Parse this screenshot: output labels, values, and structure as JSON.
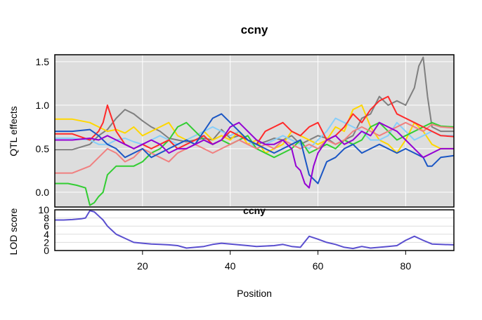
{
  "chart_data": [
    {
      "panel": "effects",
      "type": "line",
      "title": "ccny",
      "xlabel": "Position",
      "ylabel": "QTL effects",
      "xlim": [
        0,
        91
      ],
      "ylim": [
        -0.17,
        1.58
      ],
      "x_ticks": [
        20,
        40,
        60,
        80
      ],
      "y_ticks": [
        0.0,
        0.5,
        1.0,
        1.5
      ],
      "y_tick_labels": [
        "0.0",
        "0.5",
        "1.0",
        "1.5"
      ],
      "background": "#dddddd",
      "grid": true,
      "legend": "none",
      "series": [
        {
          "color": "#7f7f7f",
          "x": [
            0,
            4,
            8,
            10,
            12,
            14,
            16,
            18,
            20,
            22,
            24,
            26,
            28,
            30,
            32,
            34,
            36,
            38,
            40,
            42,
            44,
            46,
            48,
            50,
            52,
            54,
            56,
            58,
            60,
            62,
            64,
            66,
            68,
            70,
            72,
            74,
            76,
            78,
            80,
            82,
            83,
            84,
            85,
            86,
            88,
            91
          ],
          "y": [
            0.49,
            0.49,
            0.55,
            0.65,
            0.72,
            0.85,
            0.95,
            0.9,
            0.82,
            0.75,
            0.7,
            0.62,
            0.6,
            0.58,
            0.6,
            0.62,
            0.6,
            0.72,
            0.62,
            0.65,
            0.6,
            0.55,
            0.58,
            0.62,
            0.6,
            0.65,
            0.55,
            0.6,
            0.65,
            0.62,
            0.55,
            0.6,
            0.65,
            0.85,
            0.9,
            1.1,
            1.0,
            1.05,
            1.0,
            1.2,
            1.45,
            1.55,
            1.1,
            0.75,
            0.7,
            0.7
          ]
        },
        {
          "color": "#ffd700",
          "x": [
            0,
            4,
            8,
            10,
            12,
            14,
            16,
            18,
            20,
            22,
            24,
            26,
            28,
            30,
            32,
            34,
            36,
            38,
            40,
            42,
            44,
            46,
            48,
            50,
            52,
            54,
            56,
            58,
            60,
            62,
            64,
            66,
            68,
            70,
            72,
            74,
            76,
            78,
            80,
            82,
            84,
            86,
            88,
            91
          ],
          "y": [
            0.84,
            0.84,
            0.8,
            0.75,
            0.7,
            0.72,
            0.68,
            0.75,
            0.65,
            0.7,
            0.75,
            0.8,
            0.65,
            0.6,
            0.65,
            0.7,
            0.6,
            0.65,
            0.6,
            0.7,
            0.55,
            0.6,
            0.45,
            0.5,
            0.55,
            0.7,
            0.65,
            0.6,
            0.55,
            0.6,
            0.75,
            0.7,
            0.95,
            1.0,
            0.75,
            0.6,
            0.55,
            0.45,
            0.6,
            0.8,
            0.7,
            0.55,
            0.5,
            0.5
          ]
        },
        {
          "color": "#87cefa",
          "x": [
            0,
            4,
            8,
            10,
            12,
            14,
            16,
            18,
            20,
            22,
            24,
            26,
            28,
            30,
            32,
            34,
            36,
            38,
            40,
            42,
            44,
            46,
            48,
            50,
            52,
            54,
            56,
            58,
            60,
            62,
            64,
            66,
            68,
            70,
            72,
            74,
            76,
            78,
            80,
            82,
            84,
            86,
            88,
            91
          ],
          "y": [
            0.62,
            0.62,
            0.6,
            0.55,
            0.55,
            0.6,
            0.62,
            0.58,
            0.55,
            0.6,
            0.65,
            0.6,
            0.55,
            0.6,
            0.65,
            0.7,
            0.75,
            0.7,
            0.65,
            0.7,
            0.6,
            0.5,
            0.55,
            0.6,
            0.65,
            0.6,
            0.55,
            0.5,
            0.6,
            0.7,
            0.85,
            0.8,
            0.75,
            0.7,
            0.6,
            0.6,
            0.65,
            0.8,
            0.7,
            0.6,
            0.65,
            0.7,
            0.65,
            0.65
          ]
        },
        {
          "color": "#32cd32",
          "x": [
            0,
            3,
            5,
            7,
            8,
            9,
            10,
            11,
            12,
            13,
            14,
            16,
            18,
            20,
            22,
            24,
            26,
            28,
            30,
            32,
            34,
            36,
            38,
            40,
            42,
            44,
            46,
            48,
            50,
            52,
            54,
            56,
            58,
            60,
            62,
            64,
            66,
            68,
            70,
            72,
            74,
            76,
            78,
            80,
            82,
            84,
            86,
            88,
            91
          ],
          "y": [
            0.1,
            0.1,
            0.08,
            0.05,
            -0.15,
            -0.12,
            -0.05,
            0.0,
            0.2,
            0.25,
            0.3,
            0.3,
            0.3,
            0.35,
            0.45,
            0.5,
            0.6,
            0.75,
            0.8,
            0.7,
            0.6,
            0.55,
            0.6,
            0.55,
            0.6,
            0.65,
            0.5,
            0.45,
            0.4,
            0.45,
            0.5,
            0.6,
            0.45,
            0.5,
            0.55,
            0.5,
            0.6,
            0.55,
            0.6,
            0.75,
            0.8,
            0.7,
            0.6,
            0.65,
            0.7,
            0.75,
            0.8,
            0.76,
            0.75
          ]
        },
        {
          "color": "#f08080",
          "x": [
            0,
            4,
            8,
            10,
            12,
            14,
            16,
            18,
            20,
            22,
            24,
            26,
            28,
            30,
            32,
            34,
            36,
            38,
            40,
            42,
            44,
            46,
            48,
            50,
            52,
            54,
            56,
            58,
            60,
            62,
            64,
            66,
            68,
            70,
            72,
            74,
            76,
            78,
            80,
            82,
            84,
            86,
            88,
            91
          ],
          "y": [
            0.22,
            0.22,
            0.3,
            0.4,
            0.5,
            0.45,
            0.35,
            0.4,
            0.5,
            0.45,
            0.4,
            0.35,
            0.45,
            0.5,
            0.55,
            0.5,
            0.45,
            0.5,
            0.55,
            0.6,
            0.55,
            0.5,
            0.55,
            0.5,
            0.6,
            0.55,
            0.5,
            0.55,
            0.5,
            0.6,
            0.55,
            0.6,
            0.7,
            0.75,
            0.7,
            0.65,
            0.7,
            0.75,
            0.8,
            0.75,
            0.7,
            0.78,
            0.75,
            0.74
          ]
        },
        {
          "color": "#ff2a2a",
          "x": [
            0,
            4,
            8,
            10,
            11,
            12,
            13,
            14,
            16,
            18,
            20,
            22,
            24,
            26,
            28,
            30,
            32,
            34,
            36,
            38,
            40,
            42,
            44,
            46,
            48,
            50,
            52,
            54,
            56,
            58,
            60,
            62,
            64,
            66,
            68,
            70,
            72,
            74,
            76,
            78,
            80,
            82,
            84,
            86,
            88,
            91
          ],
          "y": [
            0.67,
            0.67,
            0.6,
            0.7,
            0.8,
            1.0,
            0.85,
            0.7,
            0.55,
            0.5,
            0.55,
            0.5,
            0.55,
            0.6,
            0.5,
            0.55,
            0.6,
            0.65,
            0.55,
            0.6,
            0.7,
            0.65,
            0.6,
            0.55,
            0.7,
            0.75,
            0.8,
            0.7,
            0.65,
            0.75,
            0.8,
            0.6,
            0.65,
            0.75,
            0.9,
            0.8,
            0.95,
            1.05,
            1.1,
            0.9,
            0.85,
            0.8,
            0.75,
            0.7,
            0.65,
            0.64
          ]
        },
        {
          "color": "#1a56c4",
          "x": [
            0,
            4,
            8,
            10,
            12,
            14,
            16,
            18,
            20,
            22,
            24,
            26,
            28,
            30,
            32,
            34,
            36,
            38,
            40,
            42,
            44,
            46,
            48,
            50,
            52,
            54,
            56,
            58,
            60,
            62,
            64,
            66,
            68,
            70,
            72,
            74,
            76,
            78,
            80,
            82,
            84,
            85,
            86,
            88,
            91
          ],
          "y": [
            0.7,
            0.7,
            0.72,
            0.65,
            0.55,
            0.5,
            0.4,
            0.45,
            0.5,
            0.4,
            0.45,
            0.5,
            0.55,
            0.6,
            0.55,
            0.7,
            0.85,
            0.9,
            0.8,
            0.7,
            0.6,
            0.55,
            0.5,
            0.45,
            0.5,
            0.55,
            0.6,
            0.2,
            0.1,
            0.35,
            0.4,
            0.5,
            0.55,
            0.45,
            0.5,
            0.55,
            0.5,
            0.45,
            0.5,
            0.45,
            0.4,
            0.3,
            0.3,
            0.4,
            0.42
          ]
        },
        {
          "color": "#9400d3",
          "x": [
            0,
            4,
            8,
            10,
            12,
            14,
            16,
            18,
            20,
            22,
            24,
            26,
            28,
            30,
            32,
            34,
            36,
            38,
            40,
            42,
            44,
            46,
            48,
            50,
            52,
            54,
            55,
            56,
            57,
            58,
            59,
            60,
            62,
            64,
            66,
            68,
            70,
            72,
            74,
            76,
            78,
            80,
            82,
            84,
            86,
            88,
            91
          ],
          "y": [
            0.6,
            0.6,
            0.62,
            0.6,
            0.65,
            0.6,
            0.55,
            0.5,
            0.55,
            0.6,
            0.55,
            0.45,
            0.5,
            0.5,
            0.55,
            0.6,
            0.55,
            0.6,
            0.75,
            0.8,
            0.7,
            0.6,
            0.55,
            0.55,
            0.6,
            0.5,
            0.3,
            0.25,
            0.1,
            0.05,
            0.3,
            0.45,
            0.6,
            0.65,
            0.55,
            0.6,
            0.7,
            0.65,
            0.8,
            0.75,
            0.7,
            0.6,
            0.5,
            0.4,
            0.45,
            0.5,
            0.5
          ]
        }
      ]
    },
    {
      "panel": "lod",
      "type": "line",
      "ylabel": "LOD score",
      "xlim": [
        0,
        91
      ],
      "ylim": [
        0,
        10
      ],
      "y_ticks": [
        0,
        2,
        4,
        6,
        8,
        10
      ],
      "y_tick_labels": [
        "0",
        "2",
        "4",
        "6",
        "8",
        "10"
      ],
      "overlap_text": "ccny",
      "background": "#ffffff",
      "grid": true,
      "series": [
        {
          "color": "#5a4fcf",
          "x": [
            0,
            2,
            4,
            6,
            7,
            8,
            9,
            10,
            11,
            12,
            13,
            14,
            15,
            16,
            18,
            20,
            22,
            24,
            26,
            28,
            30,
            32,
            34,
            36,
            38,
            40,
            42,
            44,
            46,
            48,
            50,
            52,
            54,
            56,
            58,
            60,
            62,
            64,
            66,
            68,
            70,
            72,
            74,
            76,
            78,
            80,
            82,
            84,
            86,
            88,
            91
          ],
          "y": [
            7.5,
            7.5,
            7.6,
            7.8,
            8.0,
            9.8,
            9.5,
            8.5,
            7.5,
            6.0,
            5.0,
            4.0,
            3.5,
            3.0,
            2.0,
            1.8,
            1.6,
            1.5,
            1.4,
            1.2,
            0.6,
            0.8,
            1.0,
            1.5,
            1.8,
            1.6,
            1.4,
            1.2,
            1.0,
            1.1,
            1.2,
            1.5,
            1.0,
            0.8,
            3.5,
            2.8,
            2.0,
            1.5,
            0.8,
            0.5,
            1.0,
            0.6,
            0.8,
            1.0,
            1.2,
            2.5,
            3.5,
            2.5,
            1.6,
            1.5,
            1.4
          ]
        }
      ]
    }
  ]
}
